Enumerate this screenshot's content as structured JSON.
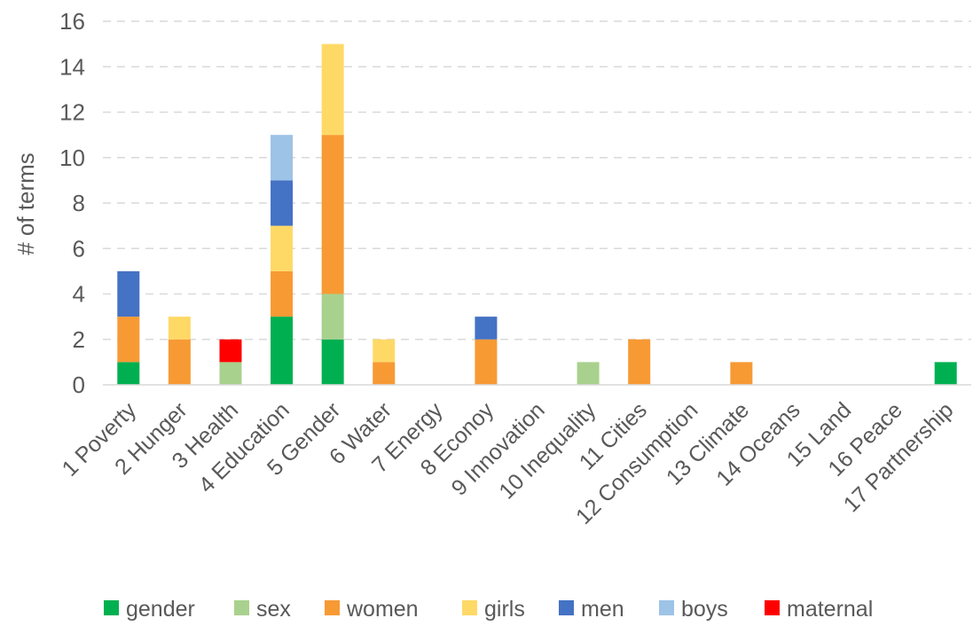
{
  "chart_data": {
    "type": "bar",
    "stacked": true,
    "title": "",
    "xlabel": "",
    "ylabel": "# of terms",
    "ylim": [
      0,
      16
    ],
    "yticks": [
      0,
      2,
      4,
      6,
      8,
      10,
      12,
      14,
      16
    ],
    "grid": true,
    "legend_position": "bottom",
    "categories": [
      "1 Poverty",
      "2 Hunger",
      "3 Health",
      "4 Education",
      "5 Gender",
      "6 Water",
      "7 Energy",
      "8 Econoy",
      "9 Innovation",
      "10 Inequality",
      "11 Cities",
      "12 Consumption",
      "13 Climate",
      "14 Oceans",
      "15 Land",
      "16 Peace",
      "17 Partnership"
    ],
    "series": [
      {
        "name": "gender",
        "color": "#00b050",
        "values": [
          1,
          0,
          0,
          3,
          2,
          0,
          0,
          0,
          0,
          0,
          0,
          0,
          0,
          0,
          0,
          0,
          1
        ]
      },
      {
        "name": "sex",
        "color": "#a9d18e",
        "values": [
          0,
          0,
          1,
          0,
          2,
          0,
          0,
          0,
          0,
          1,
          0,
          0,
          0,
          0,
          0,
          0,
          0
        ]
      },
      {
        "name": "women",
        "color": "#f79a34",
        "values": [
          2,
          2,
          0,
          2,
          7,
          1,
          0,
          2,
          0,
          0,
          2,
          0,
          1,
          0,
          0,
          0,
          0
        ]
      },
      {
        "name": "girls",
        "color": "#ffd966",
        "values": [
          0,
          1,
          0,
          2,
          4,
          1,
          0,
          0,
          0,
          0,
          0,
          0,
          0,
          0,
          0,
          0,
          0
        ]
      },
      {
        "name": "men",
        "color": "#4472c4",
        "values": [
          2,
          0,
          0,
          2,
          0,
          0,
          0,
          1,
          0,
          0,
          0,
          0,
          0,
          0,
          0,
          0,
          0
        ]
      },
      {
        "name": "boys",
        "color": "#9dc3e6",
        "values": [
          0,
          0,
          0,
          2,
          0,
          0,
          0,
          0,
          0,
          0,
          0,
          0,
          0,
          0,
          0,
          0,
          0
        ]
      },
      {
        "name": "maternal",
        "color": "#ff0000",
        "values": [
          0,
          0,
          1,
          0,
          0,
          0,
          0,
          0,
          0,
          0,
          0,
          0,
          0,
          0,
          0,
          0,
          0
        ]
      }
    ]
  }
}
